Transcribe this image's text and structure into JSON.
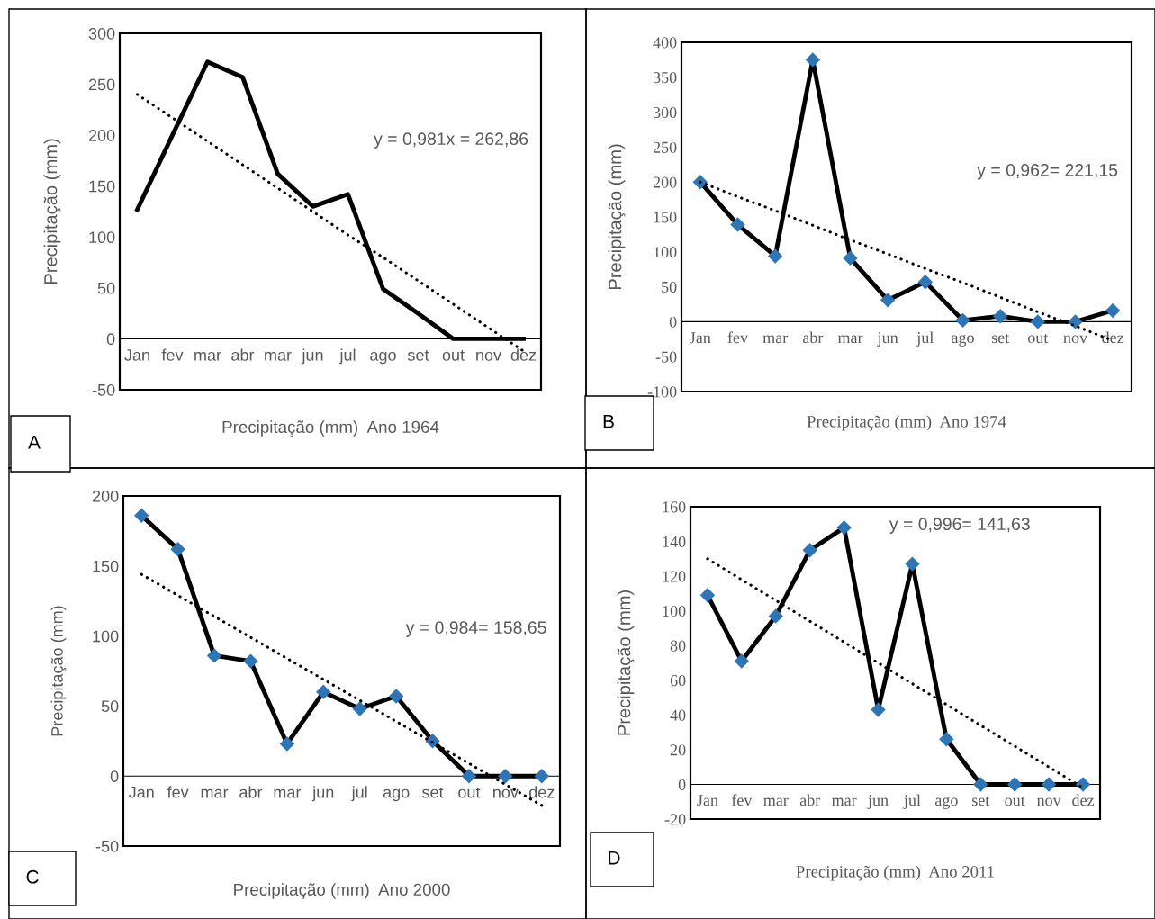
{
  "chart_data": [
    {
      "type": "line",
      "title": "Precipitação (mm)  Ano 1964",
      "ylabel": "Precipitação (mm)",
      "categories": [
        "Jan",
        "fev",
        "mar",
        "abr",
        "mar",
        "jun",
        "jul",
        "ago",
        "set",
        "out",
        "nov",
        "dez"
      ],
      "ylim": [
        -50,
        300
      ],
      "yticks": [
        -50,
        0,
        50,
        100,
        150,
        200,
        250,
        300
      ],
      "grid": false,
      "legend": false,
      "annotations": [
        "y = 0,981x = 262,86",
        "A"
      ],
      "series": [
        {
          "color": "#000000",
          "line_style": "solid",
          "marker": "none",
          "values": [
            127,
            200,
            272,
            257,
            162,
            130,
            142,
            49,
            25,
            0,
            0,
            0
          ]
        },
        {
          "color": "#000000",
          "line_style": "dotted",
          "marker": "none",
          "values": [
            240,
            217,
            194,
            171,
            148,
            125,
            102,
            80,
            57,
            34,
            11,
            -12
          ]
        }
      ]
    },
    {
      "type": "line",
      "title": "Precipitação (mm)  Ano 1974",
      "ylabel": "Precipitação (mm)",
      "categories": [
        "Jan",
        "fev",
        "mar",
        "abr",
        "mar",
        "jun",
        "jul",
        "ago",
        "set",
        "out",
        "nov",
        "dez"
      ],
      "ylim": [
        -100,
        400
      ],
      "yticks": [
        -100,
        -50,
        0,
        50,
        100,
        150,
        200,
        250,
        300,
        350,
        400
      ],
      "grid": false,
      "legend": false,
      "annotations": [
        "y = 0,962= 221,15",
        "B"
      ],
      "series": [
        {
          "color": "#000000",
          "line_style": "solid",
          "marker": "diamond",
          "colors": [
            "#2e75b6",
            "#2e75b6",
            "#2e75b6",
            "#2e75b6",
            "#2e75b6",
            "#2e75b6",
            "#2e75b6",
            "#2e75b6",
            "#2e75b6",
            "#2e75b6",
            "#2e75b6",
            "#2e75b6"
          ],
          "values": [
            200,
            139,
            94,
            375,
            91,
            31,
            57,
            2,
            8,
            0,
            0,
            16
          ]
        },
        {
          "color": "#000000",
          "line_style": "dotted",
          "marker": "none",
          "values": [
            200,
            179,
            159,
            138,
            117,
            97,
            76,
            56,
            35,
            14,
            -6,
            -27
          ]
        }
      ]
    },
    {
      "type": "line",
      "title": "Precipitação (mm)  Ano 2000",
      "ylabel": "Precipitação (mm)",
      "categories": [
        "Jan",
        "fev",
        "mar",
        "abr",
        "mar",
        "jun",
        "jul",
        "ago",
        "set",
        "out",
        "nov",
        "dez"
      ],
      "ylim": [
        -50,
        200
      ],
      "yticks": [
        -50,
        0,
        50,
        100,
        150,
        200
      ],
      "grid": false,
      "legend": false,
      "annotations": [
        "y = 0,984= 158,65",
        "C"
      ],
      "series": [
        {
          "color": "#000000",
          "line_style": "solid",
          "marker": "diamond",
          "colors": [
            "#2e75b6",
            "#2e75b6",
            "#2e75b6",
            "#2e75b6",
            "#2e75b6",
            "#2e75b6",
            "#2e75b6",
            "#2e75b6",
            "#2e75b6",
            "#2e75b6",
            "#2e75b6",
            "#2e75b6"
          ],
          "values": [
            186,
            162,
            86,
            82,
            23,
            60,
            48,
            57,
            25,
            0,
            0,
            0
          ]
        },
        {
          "color": "#000000",
          "line_style": "dotted",
          "marker": "none",
          "values": [
            144,
            129,
            114,
            99,
            84,
            69,
            54,
            39,
            24,
            9,
            -6,
            -21
          ]
        }
      ]
    },
    {
      "type": "line",
      "title": "Precipitação (mm)  Ano 2011",
      "ylabel": "Precipitação (mm)",
      "categories": [
        "Jan",
        "fev",
        "mar",
        "abr",
        "mar",
        "jun",
        "jul",
        "ago",
        "set",
        "out",
        "nov",
        "dez"
      ],
      "ylim": [
        -20,
        160
      ],
      "yticks": [
        -20,
        0,
        20,
        40,
        60,
        80,
        100,
        120,
        140,
        160
      ],
      "grid": false,
      "legend": false,
      "annotations": [
        "y = 0,996= 141,63",
        "D"
      ],
      "series": [
        {
          "color": "#000000",
          "line_style": "solid",
          "marker": "diamond",
          "colors": [
            "#2e75b6",
            "#2e75b6",
            "#2e75b6",
            "#2e75b6",
            "#2e75b6",
            "#2e75b6",
            "#2e75b6",
            "#2e75b6",
            "#2e75b6",
            "#2e75b6",
            "#2e75b6",
            "#2e75b6"
          ],
          "values": [
            109,
            71,
            97,
            135,
            148,
            43,
            127,
            26,
            0,
            0,
            0,
            0
          ]
        },
        {
          "color": "#000000",
          "line_style": "dotted",
          "marker": "none",
          "values": [
            130,
            118,
            106,
            94,
            82,
            70,
            58,
            46,
            34,
            22,
            10,
            -2
          ]
        }
      ]
    }
  ]
}
